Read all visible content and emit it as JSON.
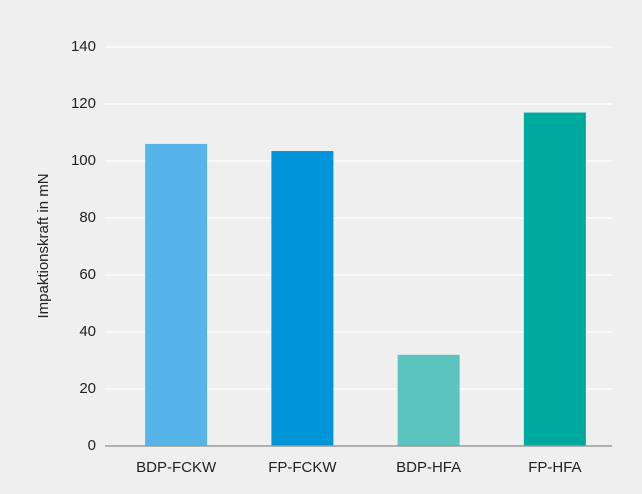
{
  "chart_data": {
    "type": "bar",
    "ylabel": "Impaktionskraft in mN",
    "categories": [
      "BDP-FCKW",
      "FP-FCKW",
      "BDP-HFA",
      "FP-HFA"
    ],
    "values": [
      106,
      103.5,
      32,
      117
    ],
    "colors": [
      "#56b4e8",
      "#0095d9",
      "#5bc4bf",
      "#00a99d"
    ],
    "ylim": [
      0,
      140
    ],
    "yticks": [
      0,
      20,
      40,
      60,
      80,
      100,
      120,
      140
    ],
    "grid": true
  }
}
